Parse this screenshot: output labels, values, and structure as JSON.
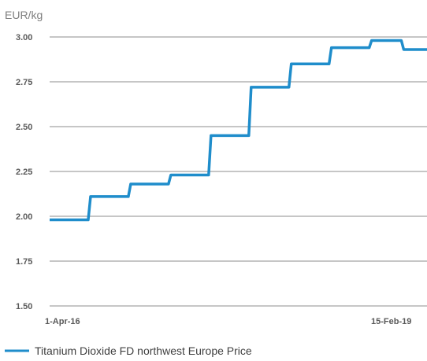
{
  "chart_data": {
    "type": "line",
    "ylabel": "EUR/kg",
    "ylim": [
      1.5,
      3.0
    ],
    "yticks": [
      "3.00",
      "2.75",
      "2.50",
      "2.25",
      "2.00",
      "1.75",
      "1.50"
    ],
    "x_tick_labels": [
      "1-Apr-16",
      "15-Feb-19"
    ],
    "x": [
      "1-Apr-16",
      "",
      "",
      "",
      "",
      "",
      "",
      "",
      "",
      "",
      "",
      "",
      "",
      "",
      "",
      "",
      "",
      "",
      "",
      "",
      "",
      "",
      "",
      "",
      "",
      "",
      "",
      "",
      "",
      "",
      "",
      "",
      "",
      "",
      "",
      "",
      "",
      "",
      "",
      "",
      "",
      "",
      "",
      "",
      "",
      "",
      "",
      "15-Feb-19"
    ],
    "series": [
      {
        "name": "Titanium Dioxide FD northwest Europe Price",
        "color": "#1f8dcb",
        "values": [
          1.98,
          1.98,
          1.98,
          1.98,
          1.98,
          2.11,
          2.11,
          2.11,
          2.11,
          2.11,
          2.18,
          2.18,
          2.18,
          2.18,
          2.18,
          2.23,
          2.23,
          2.23,
          2.23,
          2.23,
          2.45,
          2.45,
          2.45,
          2.45,
          2.45,
          2.72,
          2.72,
          2.72,
          2.72,
          2.72,
          2.85,
          2.85,
          2.85,
          2.85,
          2.85,
          2.94,
          2.94,
          2.94,
          2.94,
          2.94,
          2.98,
          2.98,
          2.98,
          2.98,
          2.93,
          2.93,
          2.93,
          2.93
        ]
      }
    ],
    "grid": true,
    "legend": "bottom-left"
  }
}
